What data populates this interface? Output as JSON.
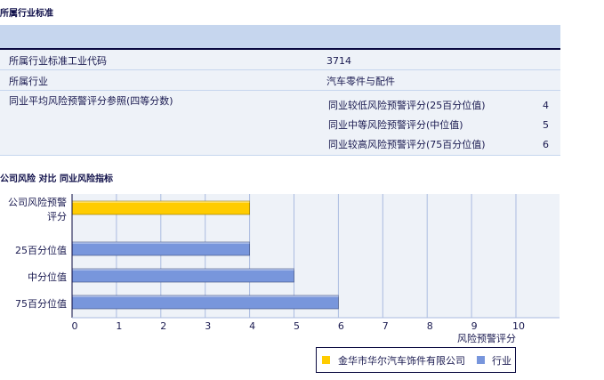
{
  "section1": {
    "title": "所属行业标准"
  },
  "table": {
    "row1": {
      "label": "所属行业标准工业代码",
      "value": "3714"
    },
    "row2": {
      "label": "所属行业",
      "value": "汽车零件与配件"
    },
    "row3": {
      "label": "同业平均风险预警评分参照(四等分数)",
      "items": [
        {
          "label": "同业较低风险预警评分(25百分位值)",
          "value": "4"
        },
        {
          "label": "同业中等风险预警评分(中位值)",
          "value": "5"
        },
        {
          "label": "同业较高风险预警评分(75百分位值)",
          "value": "6"
        }
      ]
    }
  },
  "section2": {
    "title": "公司风险 对比 同业风险指标"
  },
  "chart_data": {
    "type": "bar",
    "orientation": "horizontal",
    "categories": [
      "公司风险预警评分",
      "25百分位值",
      "中分位值",
      "75百分位值"
    ],
    "values": [
      4,
      4,
      5,
      6
    ],
    "series_of_bar": [
      "company",
      "industry",
      "industry",
      "industry"
    ],
    "series": [
      {
        "name": "金华市华尔汽车饰件有限公司",
        "color": "#ffcc00"
      },
      {
        "name": "行业",
        "color": "#7896dc"
      }
    ],
    "xlabel": "风险预警评分",
    "xlim": [
      0,
      11
    ],
    "xticks": [
      "0",
      "1",
      "2",
      "3",
      "4",
      "5",
      "6",
      "7",
      "8",
      "9",
      "10"
    ],
    "grid": true,
    "legend_placement": "bottom-right"
  }
}
